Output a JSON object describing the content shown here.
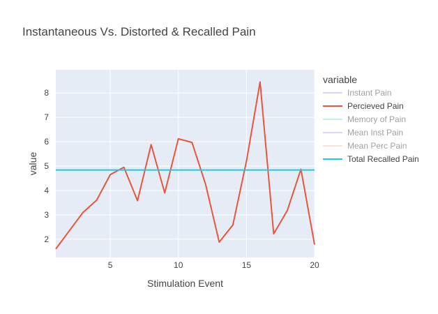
{
  "chart_data": {
    "type": "line",
    "title": "Instantaneous Vs. Distorted & Recalled Pain",
    "xlabel": "Stimulation Event",
    "ylabel": "value",
    "xlim": [
      1,
      20
    ],
    "ylim": [
      1.25,
      8.95
    ],
    "x_ticks": [
      5,
      10,
      15,
      20
    ],
    "y_ticks": [
      2,
      3,
      4,
      5,
      6,
      7,
      8
    ],
    "grid": true,
    "legend_title": "variable",
    "legend_position": "right",
    "series": [
      {
        "name": "Instant Pain",
        "color": "#a9adf7",
        "visible": false,
        "values": []
      },
      {
        "name": "Percieved Pain",
        "color": "#e8553e",
        "visible": true,
        "x": [
          1,
          2,
          3,
          4,
          5,
          6,
          7,
          8,
          9,
          10,
          11,
          12,
          13,
          14,
          15,
          16,
          17,
          18,
          19,
          20
        ],
        "values": [
          1.6,
          2.35,
          3.1,
          3.6,
          4.65,
          4.95,
          3.58,
          5.88,
          3.9,
          6.12,
          5.97,
          4.25,
          1.88,
          2.58,
          5.2,
          8.45,
          2.22,
          3.18,
          4.87,
          1.78
        ]
      },
      {
        "name": "Memory of Pain",
        "color": "#8fe0c6",
        "visible": false,
        "values": []
      },
      {
        "name": "Mean Inst Pain",
        "color": "#c9a9f2",
        "visible": false,
        "values": []
      },
      {
        "name": "Mean Perc Pain",
        "color": "#f7c8a8",
        "visible": false,
        "values": []
      },
      {
        "name": "Total Recalled Pain",
        "color": "#22cbd9",
        "visible": true,
        "x": [
          1,
          20
        ],
        "values": [
          4.84,
          4.84
        ]
      }
    ]
  }
}
